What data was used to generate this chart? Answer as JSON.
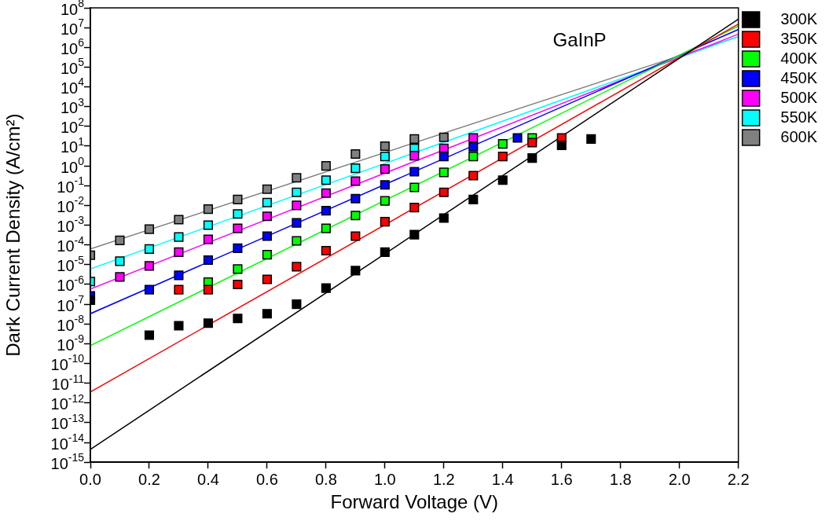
{
  "chart_data": {
    "type": "scatter",
    "annotations": [
      "GaInP"
    ],
    "xlabel": "Forward Voltage (V)",
    "ylabel": "Dark Current Density (A/cm²)",
    "log": "y",
    "marker": "square",
    "legend": "right",
    "grid": false,
    "xlim": [
      0,
      2.2
    ],
    "xticks": [
      {
        "value": 0,
        "label": "0.0"
      },
      {
        "value": 0.2,
        "label": "0.2"
      },
      {
        "value": 0.4,
        "label": "0.4"
      },
      {
        "value": 0.6,
        "label": "0.6"
      },
      {
        "value": 0.8,
        "label": "0.8"
      },
      {
        "value": 1,
        "label": "1.0"
      },
      {
        "value": 1.2,
        "label": "1.2"
      },
      {
        "value": 1.4,
        "label": "1.4"
      },
      {
        "value": 1.6,
        "label": "1.6"
      },
      {
        "value": 1.8,
        "label": "1.8"
      },
      {
        "value": 2,
        "label": "2.0"
      },
      {
        "value": 2.2,
        "label": "2.2"
      }
    ],
    "ylim": [
      1e-15,
      100000000.0
    ],
    "yticks": [
      {
        "value": 1e-15,
        "label": "10$^{-15}$"
      },
      {
        "value": 1e-14,
        "label": "10$^{-14}$"
      },
      {
        "value": 1e-13,
        "label": "10$^{-13}$"
      },
      {
        "value": 1e-12,
        "label": "10$^{-12}$"
      },
      {
        "value": 1e-11,
        "label": "10$^{-11}$"
      },
      {
        "value": 1e-10,
        "label": "10$^{-10}$"
      },
      {
        "value": 1e-09,
        "label": "10$^{-9}$"
      },
      {
        "value": 1e-08,
        "label": "10$^{-8}$"
      },
      {
        "value": 1e-07,
        "label": "10$^{-7}$"
      },
      {
        "value": 1e-06,
        "label": "10$^{-6}$"
      },
      {
        "value": 1e-05,
        "label": "10$^{-5}$"
      },
      {
        "value": 0.0001,
        "label": "10$^{-4}$"
      },
      {
        "value": 0.001,
        "label": "10$^{-3}$"
      },
      {
        "value": 0.01,
        "label": "10$^{-2}$"
      },
      {
        "value": 0.1,
        "label": "10$^{-1}$"
      },
      {
        "value": 1,
        "label": "10$^{0}$"
      },
      {
        "value": 10,
        "label": "10$^{1}$"
      },
      {
        "value": 100,
        "label": "10$^{2}$"
      },
      {
        "value": 1000,
        "label": "10$^{3}$"
      },
      {
        "value": 10000,
        "label": "10$^{4}$"
      },
      {
        "value": 100000,
        "label": "10$^{5}$"
      },
      {
        "value": 1000000,
        "label": "10$^{6}$"
      },
      {
        "value": 10000000,
        "label": "10$^{7}$"
      },
      {
        "value": 100000000,
        "label": "10$^{8}$"
      }
    ],
    "series": [
      {
        "type": "line",
        "marker": "none",
        "color": "#000000",
        "x": [
          0,
          2.2
        ],
        "values": [
          4.5e-15,
          27000000.0
        ]
      },
      {
        "type": "line",
        "marker": "none",
        "color": "#ff0000",
        "x": [
          0,
          2.2
        ],
        "values": [
          3.6e-12,
          15000000.0
        ]
      },
      {
        "type": "line",
        "marker": "none",
        "color": "#00ff00",
        "x": [
          0,
          2.2
        ],
        "values": [
          7.9e-10,
          12000000.0
        ]
      },
      {
        "type": "line",
        "marker": "none",
        "color": "#0000ff",
        "x": [
          0,
          2.2
        ],
        "values": [
          3.3e-08,
          8100000.0
        ]
      },
      {
        "type": "line",
        "marker": "none",
        "color": "#ff00ff",
        "x": [
          0,
          2.2
        ],
        "values": [
          5.9e-07,
          4700000.0
        ]
      },
      {
        "type": "line",
        "marker": "none",
        "color": "#00ffff",
        "x": [
          0,
          2.2
        ],
        "values": [
          6e-06,
          3500000.0
        ]
      },
      {
        "type": "line",
        "marker": "none",
        "color": "#808080",
        "x": [
          0,
          2.2
        ],
        "values": [
          6.2e-05,
          3500000.0
        ]
      },
      {
        "name": "300K",
        "color": "#000000",
        "x": [
          0,
          0.2,
          0.3,
          0.4,
          0.5,
          0.6,
          0.7,
          0.8,
          0.9,
          1.0,
          1.1,
          1.2,
          1.3,
          1.4,
          1.5,
          1.6,
          1.7
        ],
        "values": [
          1.6e-07,
          2.7e-09,
          8.1e-09,
          1.1e-08,
          1.9e-08,
          3.3e-08,
          1e-07,
          6.5e-07,
          5e-06,
          4.3e-05,
          0.00033,
          0.0023,
          0.02,
          0.19,
          2.5,
          11,
          23
        ]
      },
      {
        "name": "350K",
        "color": "#ff0000",
        "x": [
          0.3,
          0.4,
          0.5,
          0.6,
          0.7,
          0.8,
          0.9,
          1.0,
          1.1,
          1.2,
          1.3,
          1.4,
          1.5,
          1.6
        ],
        "values": [
          5.4e-07,
          5.4e-07,
          1e-06,
          1.8e-06,
          7.9e-06,
          5.1e-05,
          0.00028,
          0.0015,
          0.0078,
          0.046,
          0.32,
          3,
          15,
          26
        ]
      },
      {
        "name": "400K",
        "color": "#00ff00",
        "x": [
          0.4,
          0.5,
          0.6,
          0.7,
          0.8,
          0.9,
          1.0,
          1.1,
          1.2,
          1.3,
          1.4,
          1.5
        ],
        "values": [
          1.3e-06,
          6e-06,
          3.2e-05,
          0.00016,
          0.00069,
          0.0031,
          0.017,
          0.081,
          0.47,
          3,
          13,
          26
        ]
      },
      {
        "name": "450K",
        "color": "#0000ff",
        "x": [
          0,
          0.2,
          0.3,
          0.4,
          0.5,
          0.6,
          0.7,
          0.8,
          0.9,
          1.0,
          1.1,
          1.2,
          1.3,
          1.45
        ],
        "values": [
          2.6e-07,
          5.4e-07,
          2.9e-06,
          1.7e-05,
          6.8e-05,
          0.00028,
          0.0013,
          0.0054,
          0.022,
          0.11,
          0.51,
          3,
          9.3,
          26
        ]
      },
      {
        "name": "500K",
        "color": "#ff00ff",
        "x": [
          0.1,
          0.2,
          0.3,
          0.4,
          0.5,
          0.6,
          0.7,
          0.8,
          0.9,
          1.0,
          1.1,
          1.2,
          1.3
        ],
        "values": [
          2.4e-06,
          8.7e-06,
          4.3e-05,
          0.00019,
          0.00069,
          0.0028,
          0.01,
          0.042,
          0.17,
          0.69,
          3.3,
          7.8,
          26
        ]
      },
      {
        "name": "550K",
        "color": "#00ffff",
        "x": [
          0,
          0.1,
          0.2,
          0.3,
          0.4,
          0.5,
          0.6,
          0.7,
          0.8,
          0.9,
          1.0,
          1.1
        ],
        "values": [
          1.4e-06,
          1.5e-05,
          6.2e-05,
          0.00025,
          0.001,
          0.0037,
          0.014,
          0.046,
          0.19,
          0.76,
          3,
          7.8
        ]
      },
      {
        "name": "600K",
        "color": "#808080",
        "x": [
          0,
          0.1,
          0.2,
          0.3,
          0.4,
          0.5,
          0.6,
          0.7,
          0.8,
          0.9,
          1.0,
          1.1,
          1.2
        ],
        "values": [
          3e-05,
          0.00017,
          0.00063,
          0.0019,
          0.0065,
          0.02,
          0.066,
          0.25,
          1,
          4,
          10,
          23,
          28
        ]
      }
    ]
  }
}
